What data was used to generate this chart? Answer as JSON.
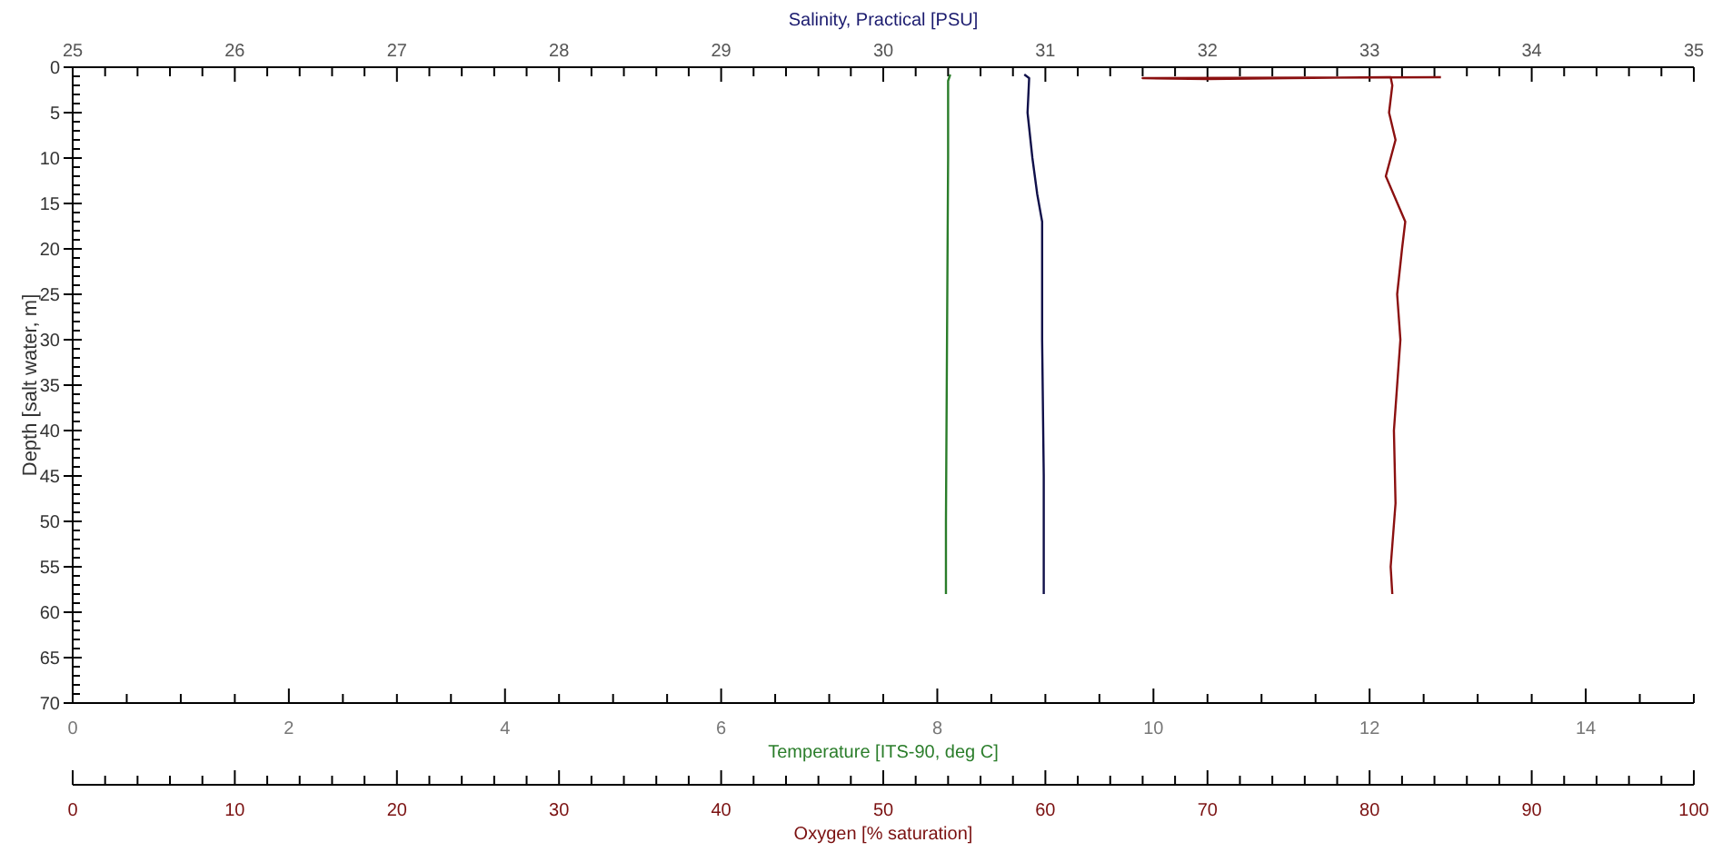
{
  "chart_data": [
    {
      "type": "line",
      "xlabel": "Temperature [ITS-90, deg C]",
      "x2label": "Salinity, Practical [PSU]",
      "ylabel": "Depth [salt water, m]",
      "xlim": [
        0,
        15
      ],
      "x2lim": [
        25,
        35
      ],
      "ylim": [
        70,
        0
      ],
      "xticks": [
        0,
        {
          "value": 0.5,
          "label": null
        },
        {
          "value": 1,
          "label": null
        },
        {
          "value": 1.5,
          "label": null
        },
        2,
        {
          "value": 2.5,
          "label": null
        },
        {
          "value": 3,
          "label": null
        },
        {
          "value": 3.5,
          "label": null
        },
        4,
        {
          "value": 4.5,
          "label": null
        },
        {
          "value": 5,
          "label": null
        },
        {
          "value": 5.5,
          "label": null
        },
        6,
        {
          "value": 6.5,
          "label": null
        },
        {
          "value": 7,
          "label": null
        },
        {
          "value": 7.5,
          "label": null
        },
        8,
        {
          "value": 8.5,
          "label": null
        },
        {
          "value": 9,
          "label": null
        },
        {
          "value": 9.5,
          "label": null
        },
        10,
        {
          "value": 10.5,
          "label": null
        },
        {
          "value": 11,
          "label": null
        },
        {
          "value": 11.5,
          "label": null
        },
        12,
        {
          "value": 12.5,
          "label": null
        },
        {
          "value": 13,
          "label": null
        },
        {
          "value": 13.5,
          "label": null
        },
        14,
        {
          "value": 14.5,
          "label": null
        },
        {
          "value": 15,
          "label": null
        }
      ],
      "x2ticks": [
        25,
        {
          "value": 25.2,
          "label": null
        },
        {
          "value": 25.4,
          "label": null
        },
        {
          "value": 25.6,
          "label": null
        },
        {
          "value": 25.8,
          "label": null
        },
        26,
        {
          "value": 26.2,
          "label": null
        },
        {
          "value": 26.4,
          "label": null
        },
        {
          "value": 26.6,
          "label": null
        },
        {
          "value": 26.8,
          "label": null
        },
        27,
        {
          "value": 27.2,
          "label": null
        },
        {
          "value": 27.4,
          "label": null
        },
        {
          "value": 27.6,
          "label": null
        },
        {
          "value": 27.8,
          "label": null
        },
        28,
        {
          "value": 28.2,
          "label": null
        },
        {
          "value": 28.4,
          "label": null
        },
        {
          "value": 28.6,
          "label": null
        },
        {
          "value": 28.8,
          "label": null
        },
        29,
        {
          "value": 29.2,
          "label": null
        },
        {
          "value": 29.4,
          "label": null
        },
        {
          "value": 29.6,
          "label": null
        },
        {
          "value": 29.8,
          "label": null
        },
        30,
        {
          "value": 30.2,
          "label": null
        },
        {
          "value": 30.4,
          "label": null
        },
        {
          "value": 30.6,
          "label": null
        },
        {
          "value": 30.8,
          "label": null
        },
        31,
        {
          "value": 31.2,
          "label": null
        },
        {
          "value": 31.4,
          "label": null
        },
        {
          "value": 31.6,
          "label": null
        },
        {
          "value": 31.8,
          "label": null
        },
        32,
        {
          "value": 32.2,
          "label": null
        },
        {
          "value": 32.4,
          "label": null
        },
        {
          "value": 32.6,
          "label": null
        },
        {
          "value": 32.8,
          "label": null
        },
        33,
        {
          "value": 33.2,
          "label": null
        },
        {
          "value": 33.4,
          "label": null
        },
        {
          "value": 33.6,
          "label": null
        },
        {
          "value": 33.8,
          "label": null
        },
        34,
        {
          "value": 34.2,
          "label": null
        },
        {
          "value": 34.4,
          "label": null
        },
        {
          "value": 34.6,
          "label": null
        },
        {
          "value": 34.8,
          "label": null
        },
        35
      ],
      "yticks": [
        0,
        {
          "value": 1,
          "label": null
        },
        {
          "value": 2,
          "label": null
        },
        {
          "value": 3,
          "label": null
        },
        {
          "value": 4,
          "label": null
        },
        5,
        {
          "value": 6,
          "label": null
        },
        {
          "value": 7,
          "label": null
        },
        {
          "value": 8,
          "label": null
        },
        {
          "value": 9,
          "label": null
        },
        10,
        {
          "value": 11,
          "label": null
        },
        {
          "value": 12,
          "label": null
        },
        {
          "value": 13,
          "label": null
        },
        {
          "value": 14,
          "label": null
        },
        15,
        {
          "value": 16,
          "label": null
        },
        {
          "value": 17,
          "label": null
        },
        {
          "value": 18,
          "label": null
        },
        {
          "value": 19,
          "label": null
        },
        20,
        {
          "value": 21,
          "label": null
        },
        {
          "value": 22,
          "label": null
        },
        {
          "value": 23,
          "label": null
        },
        {
          "value": 24,
          "label": null
        },
        25,
        {
          "value": 26,
          "label": null
        },
        {
          "value": 27,
          "label": null
        },
        {
          "value": 28,
          "label": null
        },
        {
          "value": 29,
          "label": null
        },
        30,
        {
          "value": 31,
          "label": null
        },
        {
          "value": 32,
          "label": null
        },
        {
          "value": 33,
          "label": null
        },
        {
          "value": 34,
          "label": null
        },
        35,
        {
          "value": 36,
          "label": null
        },
        {
          "value": 37,
          "label": null
        },
        {
          "value": 38,
          "label": null
        },
        {
          "value": 39,
          "label": null
        },
        40,
        {
          "value": 41,
          "label": null
        },
        {
          "value": 42,
          "label": null
        },
        {
          "value": 43,
          "label": null
        },
        {
          "value": 44,
          "label": null
        },
        45,
        {
          "value": 46,
          "label": null
        },
        {
          "value": 47,
          "label": null
        },
        {
          "value": 48,
          "label": null
        },
        {
          "value": 49,
          "label": null
        },
        50,
        {
          "value": 51,
          "label": null
        },
        {
          "value": 52,
          "label": null
        },
        {
          "value": 53,
          "label": null
        },
        {
          "value": 54,
          "label": null
        },
        55,
        {
          "value": 56,
          "label": null
        },
        {
          "value": 57,
          "label": null
        },
        {
          "value": 58,
          "label": null
        },
        {
          "value": 59,
          "label": null
        },
        60,
        {
          "value": 61,
          "label": null
        },
        {
          "value": 62,
          "label": null
        },
        {
          "value": 63,
          "label": null
        },
        {
          "value": 64,
          "label": null
        },
        65,
        {
          "value": 66,
          "label": null
        },
        {
          "value": 67,
          "label": null
        },
        {
          "value": 68,
          "label": null
        },
        {
          "value": 69,
          "label": null
        },
        70
      ],
      "series": [
        {
          "color": "#2a7d2a",
          "x": [
            8.12,
            8.1,
            8.1,
            8.09,
            8.08,
            8.08
          ],
          "values": [
            0.8,
            1.5,
            10,
            30,
            50,
            58
          ]
        },
        {
          "color": "#10104a",
          "axis": "x2",
          "x": [
            30.87,
            30.9,
            30.89,
            30.92,
            30.95,
            30.98,
            30.98,
            30.99,
            30.99
          ],
          "values": [
            0.8,
            1.2,
            5,
            10,
            14,
            17,
            30,
            45,
            58
          ]
        }
      ]
    },
    {
      "type": "line",
      "xlabel": "Oxygen [% saturation]",
      "xlim": [
        0,
        100
      ],
      "ylim": [
        70,
        0
      ],
      "tick_labels": "x",
      "xticks": [
        0,
        {
          "value": 2,
          "label": null
        },
        {
          "value": 4,
          "label": null
        },
        {
          "value": 6,
          "label": null
        },
        {
          "value": 8,
          "label": null
        },
        10,
        {
          "value": 12,
          "label": null
        },
        {
          "value": 14,
          "label": null
        },
        {
          "value": 16,
          "label": null
        },
        {
          "value": 18,
          "label": null
        },
        20,
        {
          "value": 22,
          "label": null
        },
        {
          "value": 24,
          "label": null
        },
        {
          "value": 26,
          "label": null
        },
        {
          "value": 28,
          "label": null
        },
        30,
        {
          "value": 32,
          "label": null
        },
        {
          "value": 34,
          "label": null
        },
        {
          "value": 36,
          "label": null
        },
        {
          "value": 38,
          "label": null
        },
        40,
        {
          "value": 42,
          "label": null
        },
        {
          "value": 44,
          "label": null
        },
        {
          "value": 46,
          "label": null
        },
        {
          "value": 48,
          "label": null
        },
        50,
        {
          "value": 52,
          "label": null
        },
        {
          "value": 54,
          "label": null
        },
        {
          "value": 56,
          "label": null
        },
        {
          "value": 58,
          "label": null
        },
        60,
        {
          "value": 62,
          "label": null
        },
        {
          "value": 64,
          "label": null
        },
        {
          "value": 66,
          "label": null
        },
        {
          "value": 68,
          "label": null
        },
        70,
        {
          "value": 72,
          "label": null
        },
        {
          "value": 74,
          "label": null
        },
        {
          "value": 76,
          "label": null
        },
        {
          "value": 78,
          "label": null
        },
        80,
        {
          "value": 82,
          "label": null
        },
        {
          "value": 84,
          "label": null
        },
        {
          "value": 86,
          "label": null
        },
        {
          "value": 88,
          "label": null
        },
        90,
        {
          "value": 92,
          "label": null
        },
        {
          "value": 94,
          "label": null
        },
        {
          "value": 96,
          "label": null
        },
        {
          "value": 98,
          "label": null
        },
        100
      ],
      "series": [
        {
          "color": "#8b1010",
          "x": [
            84.4,
            66.0,
            70,
            75,
            81.3,
            81.4,
            81.2,
            81.6,
            81.0,
            82.2,
            82.0,
            81.7,
            81.9,
            81.5,
            81.6,
            81.3,
            81.4
          ],
          "values": [
            1.1,
            1.2,
            1.3,
            1.2,
            1.1,
            2,
            5,
            8,
            12,
            17,
            20,
            25,
            30,
            40,
            48,
            55,
            58
          ]
        }
      ]
    }
  ]
}
